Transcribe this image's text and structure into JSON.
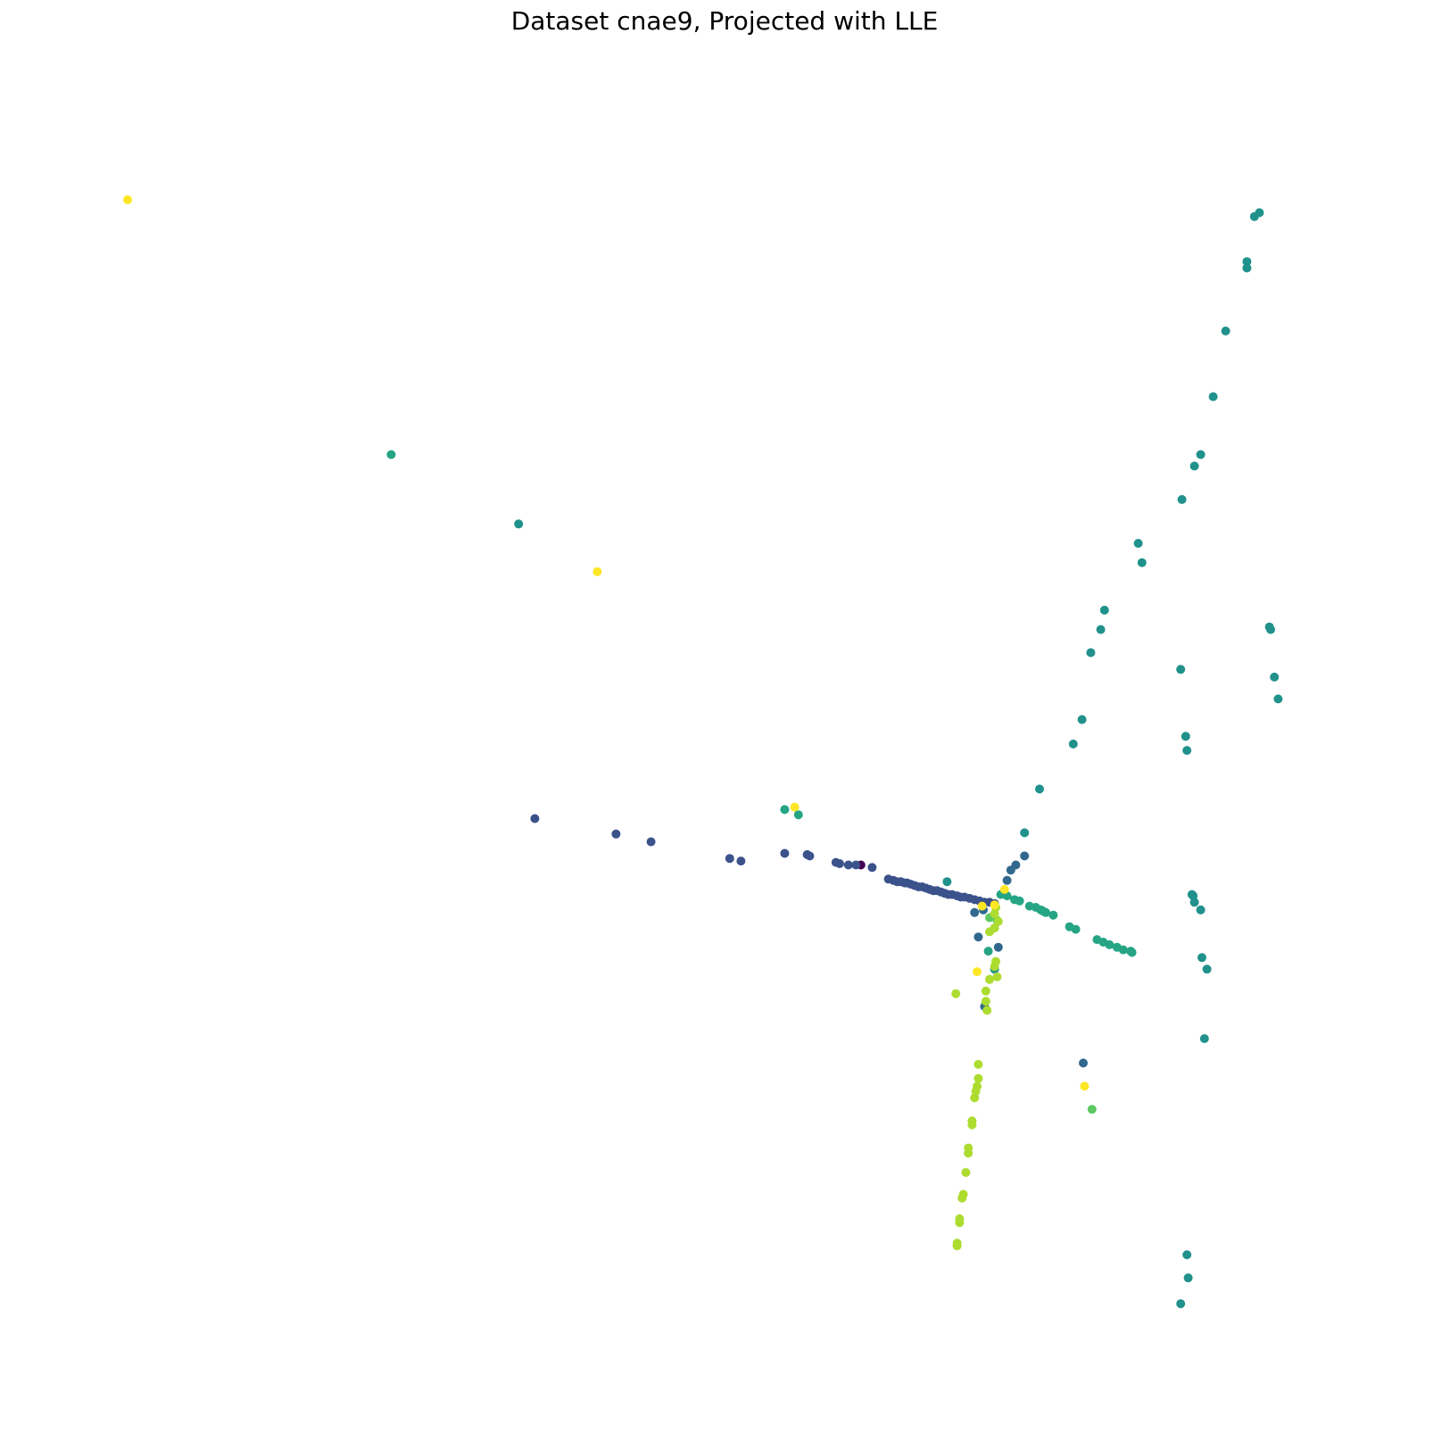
{
  "chart_data": {
    "type": "scatter",
    "title": "Dataset cnae9, Projected with LLE",
    "xlabel": "",
    "ylabel": "",
    "axes_visible": false,
    "grid": false,
    "legend": "none",
    "xlim": [
      0,
      1
    ],
    "ylim": [
      0,
      1
    ],
    "class_colors": {
      "c1": "#440154",
      "c2": "#3b528b",
      "c3": "#31688e",
      "c4": "#21918c",
      "c5": "#25a584",
      "c6": "#5ec962",
      "c7": "#addc30",
      "c8": "#fde725"
    },
    "series": [
      {
        "class": "c1",
        "points": [
          [
            0.587,
            0.413
          ]
        ]
      },
      {
        "class": "c2",
        "points": [
          [
            0.326,
            0.449
          ],
          [
            0.391,
            0.437
          ],
          [
            0.419,
            0.431
          ],
          [
            0.482,
            0.418
          ],
          [
            0.491,
            0.416
          ],
          [
            0.526,
            0.422
          ],
          [
            0.544,
            0.421
          ],
          [
            0.546,
            0.42
          ],
          [
            0.567,
            0.415
          ],
          [
            0.577,
            0.413
          ],
          [
            0.583,
            0.413
          ],
          [
            0.596,
            0.411
          ],
          [
            0.609,
            0.402
          ],
          [
            0.613,
            0.401
          ],
          [
            0.616,
            0.4
          ],
          [
            0.619,
            0.4
          ],
          [
            0.622,
            0.399
          ],
          [
            0.624,
            0.399
          ],
          [
            0.627,
            0.398
          ],
          [
            0.63,
            0.397
          ],
          [
            0.633,
            0.396
          ],
          [
            0.636,
            0.396
          ],
          [
            0.639,
            0.395
          ],
          [
            0.642,
            0.394
          ],
          [
            0.645,
            0.393
          ],
          [
            0.648,
            0.393
          ],
          [
            0.651,
            0.392
          ],
          [
            0.654,
            0.391
          ],
          [
            0.657,
            0.39
          ],
          [
            0.66,
            0.39
          ],
          [
            0.664,
            0.389
          ],
          [
            0.667,
            0.388
          ],
          [
            0.67,
            0.388
          ],
          [
            0.674,
            0.387
          ],
          [
            0.678,
            0.386
          ],
          [
            0.682,
            0.385
          ],
          [
            0.686,
            0.384
          ],
          [
            0.69,
            0.384
          ],
          [
            0.694,
            0.383
          ],
          [
            0.57,
            0.414
          ]
        ]
      },
      {
        "class": "c3",
        "points": [
          [
            0.678,
            0.376
          ],
          [
            0.685,
            0.378
          ],
          [
            0.681,
            0.357
          ],
          [
            0.697,
            0.349
          ],
          [
            0.704,
            0.401
          ],
          [
            0.707,
            0.409
          ],
          [
            0.711,
            0.413
          ],
          [
            0.686,
            0.303
          ],
          [
            0.765,
            0.259
          ],
          [
            0.718,
            0.42
          ]
        ]
      },
      {
        "class": "c4",
        "points": [
          [
            0.313,
            0.678
          ],
          [
            0.718,
            0.438
          ],
          [
            0.73,
            0.472
          ],
          [
            0.757,
            0.507
          ],
          [
            0.764,
            0.526
          ],
          [
            0.771,
            0.578
          ],
          [
            0.779,
            0.596
          ],
          [
            0.782,
            0.611
          ],
          [
            0.809,
            0.663
          ],
          [
            0.812,
            0.648
          ],
          [
            0.844,
            0.697
          ],
          [
            0.854,
            0.723
          ],
          [
            0.859,
            0.732
          ],
          [
            0.869,
            0.777
          ],
          [
            0.879,
            0.828
          ],
          [
            0.896,
            0.882
          ],
          [
            0.902,
            0.917
          ],
          [
            0.906,
            0.92
          ],
          [
            0.896,
            0.877
          ],
          [
            0.921,
            0.542
          ],
          [
            0.918,
            0.559
          ],
          [
            0.915,
            0.596
          ],
          [
            0.914,
            0.598
          ],
          [
            0.864,
            0.332
          ],
          [
            0.86,
            0.341
          ],
          [
            0.859,
            0.378
          ],
          [
            0.854,
            0.384
          ],
          [
            0.853,
            0.389
          ],
          [
            0.852,
            0.39
          ],
          [
            0.848,
            0.502
          ],
          [
            0.847,
            0.513
          ],
          [
            0.843,
            0.565
          ],
          [
            0.694,
            0.332
          ],
          [
            0.656,
            0.4
          ],
          [
            0.849,
            0.092
          ],
          [
            0.848,
            0.11
          ],
          [
            0.843,
            0.072
          ],
          [
            0.862,
            0.278
          ]
        ]
      },
      {
        "class": "c5",
        "points": [
          [
            0.211,
            0.732
          ],
          [
            0.526,
            0.456
          ],
          [
            0.537,
            0.452
          ],
          [
            0.699,
            0.39
          ],
          [
            0.704,
            0.389
          ],
          [
            0.71,
            0.386
          ],
          [
            0.714,
            0.385
          ],
          [
            0.722,
            0.381
          ],
          [
            0.727,
            0.38
          ],
          [
            0.731,
            0.378
          ],
          [
            0.733,
            0.377
          ],
          [
            0.735,
            0.376
          ],
          [
            0.741,
            0.374
          ],
          [
            0.754,
            0.365
          ],
          [
            0.759,
            0.363
          ],
          [
            0.776,
            0.355
          ],
          [
            0.781,
            0.353
          ],
          [
            0.786,
            0.351
          ],
          [
            0.792,
            0.349
          ],
          [
            0.797,
            0.347
          ],
          [
            0.803,
            0.346
          ],
          [
            0.804,
            0.345
          ],
          [
            0.689,
            0.346
          ]
        ]
      },
      {
        "class": "c6",
        "points": [
          [
            0.69,
            0.372
          ],
          [
            0.696,
            0.37
          ],
          [
            0.772,
            0.223
          ]
        ]
      },
      {
        "class": "c7",
        "points": [
          [
            0.695,
            0.38
          ],
          [
            0.694,
            0.375
          ],
          [
            0.697,
            0.369
          ],
          [
            0.694,
            0.364
          ],
          [
            0.69,
            0.361
          ],
          [
            0.695,
            0.338
          ],
          [
            0.694,
            0.334
          ],
          [
            0.69,
            0.324
          ],
          [
            0.696,
            0.326
          ],
          [
            0.663,
            0.313
          ],
          [
            0.687,
            0.315
          ],
          [
            0.687,
            0.307
          ],
          [
            0.688,
            0.3
          ],
          [
            0.681,
            0.258
          ],
          [
            0.681,
            0.247
          ],
          [
            0.68,
            0.241
          ],
          [
            0.679,
            0.237
          ],
          [
            0.678,
            0.232
          ],
          [
            0.676,
            0.214
          ],
          [
            0.676,
            0.211
          ],
          [
            0.673,
            0.193
          ],
          [
            0.673,
            0.189
          ],
          [
            0.671,
            0.174
          ],
          [
            0.669,
            0.157
          ],
          [
            0.668,
            0.154
          ],
          [
            0.666,
            0.138
          ],
          [
            0.666,
            0.135
          ],
          [
            0.664,
            0.119
          ],
          [
            0.664,
            0.117
          ]
        ]
      },
      {
        "class": "c8",
        "points": [
          [
            0.0,
            0.93
          ],
          [
            0.376,
            0.641
          ],
          [
            0.534,
            0.458
          ],
          [
            0.684,
            0.381
          ],
          [
            0.702,
            0.394
          ],
          [
            0.68,
            0.33
          ],
          [
            0.766,
            0.241
          ],
          [
            0.694,
            0.382
          ]
        ]
      }
    ]
  }
}
